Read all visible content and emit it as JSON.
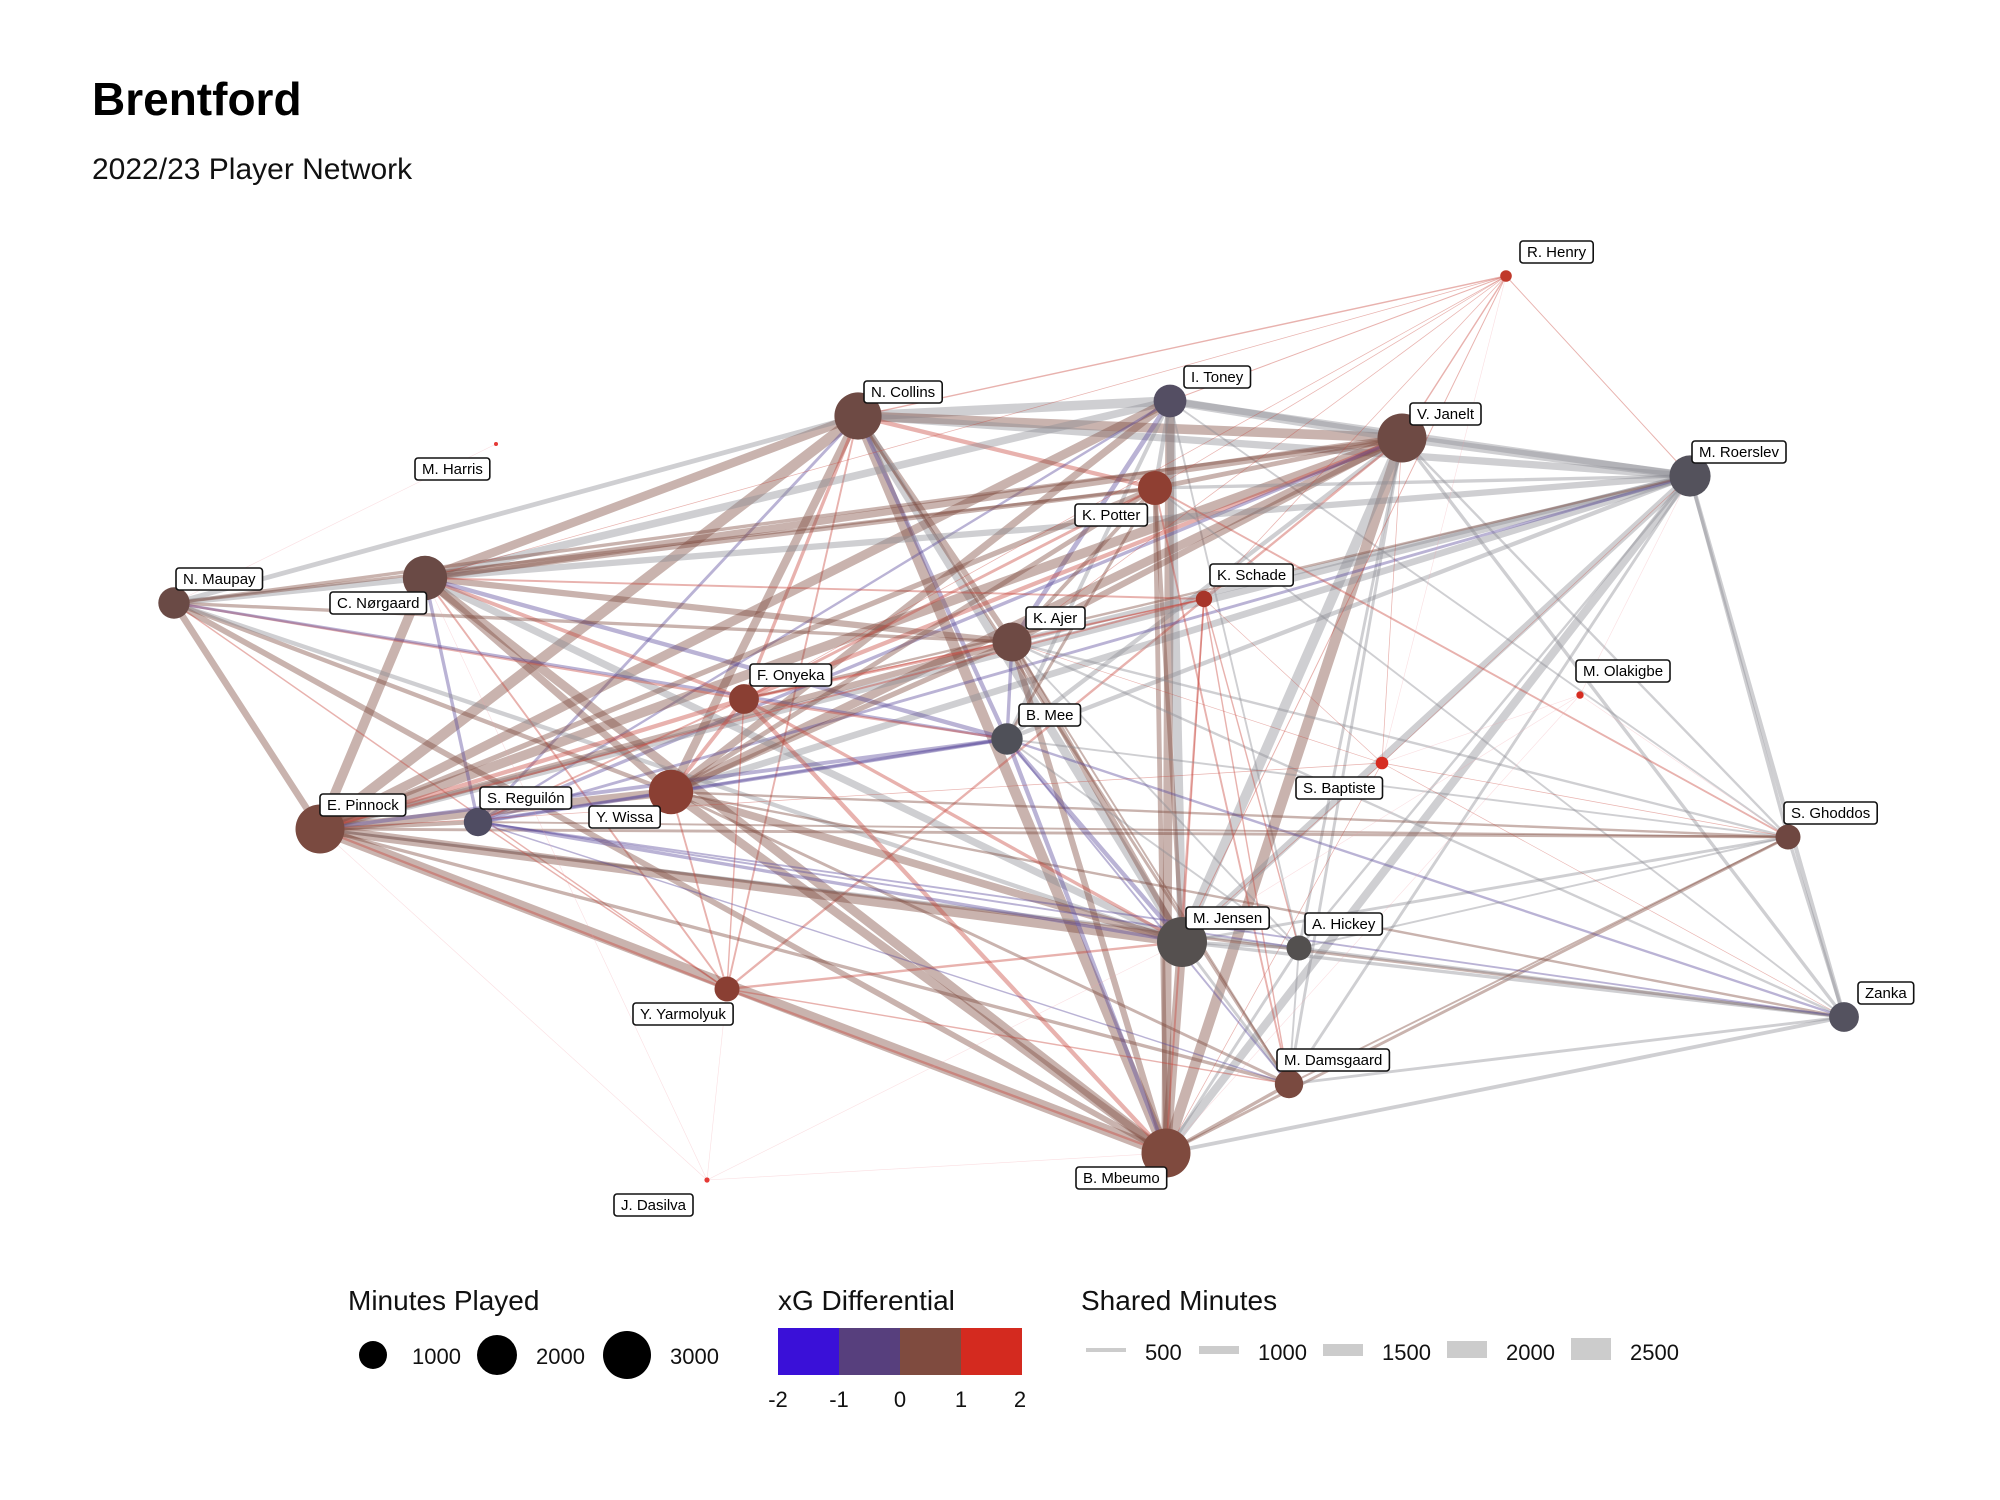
{
  "header": {
    "title": "Brentford",
    "subtitle": "2022/23 Player Network"
  },
  "legends": {
    "minutes_played": {
      "title": "Minutes Played",
      "entries": [
        "1000",
        "2000",
        "3000"
      ]
    },
    "xg_differential": {
      "title": "xG Differential",
      "ticks": [
        "-2",
        "-1",
        "0",
        "1",
        "2"
      ],
      "colors": [
        "#3a10d8",
        "#573f7d",
        "#7f4b3f",
        "#d42a1f"
      ]
    },
    "shared_minutes": {
      "title": "Shared Minutes",
      "entries": [
        "500",
        "1000",
        "1500",
        "2000",
        "2500"
      ]
    }
  },
  "colors": {
    "edge_red": "#c8473f",
    "edge_brown": "#7f4b3f",
    "edge_purple": "#5a4a9a",
    "edge_grey": "#8d8d94",
    "edge_pink": "#f0a0a8",
    "legend_grey": "#cccccc"
  },
  "nodes": [
    {
      "id": "henry",
      "name": "R. Henry",
      "minutes": 150,
      "xg": 2.0,
      "color": "#c0392b"
    },
    {
      "id": "toney",
      "name": "I. Toney",
      "minutes": 1200,
      "xg": -0.6,
      "color": "#544e63"
    },
    {
      "id": "collins",
      "name": "N. Collins",
      "minutes": 2500,
      "xg": 0.1,
      "color": "#6e4a44"
    },
    {
      "id": "janelt",
      "name": "V. Janelt",
      "minutes": 2700,
      "xg": 0.2,
      "color": "#6e4a44"
    },
    {
      "id": "roerslev",
      "name": "M. Roerslev",
      "minutes": 1900,
      "xg": -0.3,
      "color": "#54525c"
    },
    {
      "id": "harris",
      "name": "M. Harris",
      "minutes": 2,
      "xg": 2.0,
      "color": "#e53935"
    },
    {
      "id": "potter",
      "name": "K. Potter",
      "minutes": 1300,
      "xg": 0.9,
      "color": "#8f3f32"
    },
    {
      "id": "maupay",
      "name": "N. Maupay",
      "minutes": 1100,
      "xg": 0.1,
      "color": "#6a4a45"
    },
    {
      "id": "norgaard",
      "name": "C. Nørgaard",
      "minutes": 2200,
      "xg": 0.1,
      "color": "#6a4a45"
    },
    {
      "id": "schade",
      "name": "K. Schade",
      "minutes": 300,
      "xg": 1.2,
      "color": "#a7362a"
    },
    {
      "id": "ajer",
      "name": "K. Ajer",
      "minutes": 1700,
      "xg": 0.1,
      "color": "#6e4a44"
    },
    {
      "id": "olakigbe",
      "name": "M. Olakigbe",
      "minutes": 60,
      "xg": 2.0,
      "color": "#d62b20"
    },
    {
      "id": "onyeka",
      "name": "F. Onyeka",
      "minutes": 1000,
      "xg": 0.7,
      "color": "#8a3f33"
    },
    {
      "id": "mee",
      "name": "B. Mee",
      "minutes": 1100,
      "xg": -0.3,
      "color": "#4f5058"
    },
    {
      "id": "baptiste",
      "name": "S. Baptiste",
      "minutes": 180,
      "xg": 2.0,
      "color": "#d62b20"
    },
    {
      "id": "ghoddos",
      "name": "S. Ghoddos",
      "minutes": 700,
      "xg": 0.2,
      "color": "#6f4741"
    },
    {
      "id": "pinnock",
      "name": "E. Pinnock",
      "minutes": 2700,
      "xg": 0.3,
      "color": "#7a4a40"
    },
    {
      "id": "reguilon",
      "name": "S. Reguilón",
      "minutes": 900,
      "xg": -0.5,
      "color": "#4f4c62"
    },
    {
      "id": "wissa",
      "name": "Y. Wissa",
      "minutes": 2200,
      "xg": 0.7,
      "color": "#8a3f33"
    },
    {
      "id": "jensen",
      "name": "M. Jensen",
      "minutes": 2800,
      "xg": -0.1,
      "color": "#55504f"
    },
    {
      "id": "hickey",
      "name": "A. Hickey",
      "minutes": 700,
      "xg": -0.1,
      "color": "#53504f"
    },
    {
      "id": "yarmolyuk",
      "name": "Y. Yarmolyuk",
      "minutes": 700,
      "xg": 0.6,
      "color": "#8a3f33"
    },
    {
      "id": "zanka",
      "name": "Zanka",
      "minutes": 1000,
      "xg": -0.4,
      "color": "#54525f"
    },
    {
      "id": "damsgaard",
      "name": "M. Damsgaard",
      "minutes": 900,
      "xg": 0.3,
      "color": "#7a4a40"
    },
    {
      "id": "mbeumo",
      "name": "B. Mbeumo",
      "minutes": 2700,
      "xg": 0.4,
      "color": "#7f4a3e"
    },
    {
      "id": "dasilva",
      "name": "J. Dasilva",
      "minutes": 30,
      "xg": 2.0,
      "color": "#e53935"
    }
  ],
  "edges": [
    [
      "collins",
      "toney",
      2000,
      "g"
    ],
    [
      "collins",
      "janelt",
      2000,
      "b"
    ],
    [
      "collins",
      "roerslev",
      1500,
      "g"
    ],
    [
      "collins",
      "norgaard",
      1800,
      "b"
    ],
    [
      "collins",
      "maupay",
      1000,
      "g"
    ],
    [
      "collins",
      "pinnock",
      2200,
      "b"
    ],
    [
      "collins",
      "ajer",
      1200,
      "b"
    ],
    [
      "collins",
      "mbeumo",
      2200,
      "b"
    ],
    [
      "collins",
      "jensen",
      1800,
      "g"
    ],
    [
      "collins",
      "wissa",
      1700,
      "b"
    ],
    [
      "collins",
      "onyeka",
      700,
      "r"
    ],
    [
      "collins",
      "potter",
      900,
      "r"
    ],
    [
      "collins",
      "mee",
      900,
      "p"
    ],
    [
      "collins",
      "henry",
      300,
      "r"
    ],
    [
      "collins",
      "damsgaard",
      600,
      "b"
    ],
    [
      "collins",
      "reguilon",
      600,
      "p"
    ],
    [
      "collins",
      "yarmolyuk",
      400,
      "r"
    ],
    [
      "toney",
      "janelt",
      1800,
      "g"
    ],
    [
      "toney",
      "roerslev",
      1400,
      "g"
    ],
    [
      "toney",
      "norgaard",
      1600,
      "g"
    ],
    [
      "toney",
      "pinnock",
      1900,
      "b"
    ],
    [
      "toney",
      "mbeumo",
      1900,
      "b"
    ],
    [
      "toney",
      "jensen",
      1900,
      "g"
    ],
    [
      "toney",
      "wissa",
      1500,
      "b"
    ],
    [
      "toney",
      "ajer",
      1000,
      "p"
    ],
    [
      "toney",
      "potter",
      900,
      "g"
    ],
    [
      "toney",
      "mee",
      800,
      "g"
    ],
    [
      "toney",
      "henry",
      200,
      "r"
    ],
    [
      "toney",
      "ghoddos",
      400,
      "g"
    ],
    [
      "toney",
      "hickey",
      400,
      "g"
    ],
    [
      "toney",
      "reguilon",
      500,
      "p"
    ],
    [
      "janelt",
      "roerslev",
      1700,
      "g"
    ],
    [
      "janelt",
      "norgaard",
      1500,
      "b"
    ],
    [
      "janelt",
      "pinnock",
      2000,
      "b"
    ],
    [
      "janelt",
      "mbeumo",
      2200,
      "b"
    ],
    [
      "janelt",
      "jensen",
      2100,
      "g"
    ],
    [
      "janelt",
      "wissa",
      1800,
      "b"
    ],
    [
      "janelt",
      "ajer",
      1300,
      "b"
    ],
    [
      "janelt",
      "onyeka",
      900,
      "r"
    ],
    [
      "janelt",
      "potter",
      1000,
      "b"
    ],
    [
      "janelt",
      "mee",
      900,
      "g"
    ],
    [
      "janelt",
      "zanka",
      700,
      "g"
    ],
    [
      "janelt",
      "ghoddos",
      500,
      "g"
    ],
    [
      "janelt",
      "henry",
      300,
      "r"
    ],
    [
      "janelt",
      "damsgaard",
      600,
      "g"
    ],
    [
      "janelt",
      "hickey",
      600,
      "g"
    ],
    [
      "janelt",
      "reguilon",
      700,
      "p"
    ],
    [
      "janelt",
      "maupay",
      700,
      "b"
    ],
    [
      "janelt",
      "yarmolyuk",
      500,
      "r"
    ],
    [
      "roerslev",
      "pinnock",
      1500,
      "g"
    ],
    [
      "roerslev",
      "mbeumo",
      1700,
      "g"
    ],
    [
      "roerslev",
      "jensen",
      1500,
      "g"
    ],
    [
      "roerslev",
      "norgaard",
      1300,
      "g"
    ],
    [
      "roerslev",
      "wissa",
      1400,
      "g"
    ],
    [
      "roerslev",
      "ajer",
      1100,
      "g"
    ],
    [
      "roerslev",
      "zanka",
      900,
      "g"
    ],
    [
      "roerslev",
      "ghoddos",
      700,
      "g"
    ],
    [
      "roerslev",
      "mee",
      900,
      "g"
    ],
    [
      "roerslev",
      "hickey",
      500,
      "g"
    ],
    [
      "roerslev",
      "damsgaard",
      600,
      "g"
    ],
    [
      "roerslev",
      "henry",
      200,
      "r"
    ],
    [
      "roerslev",
      "reguilon",
      600,
      "p"
    ],
    [
      "roerslev",
      "onyeka",
      500,
      "b"
    ],
    [
      "roerslev",
      "potter",
      700,
      "g"
    ],
    [
      "norgaard",
      "maupay",
      1200,
      "g"
    ],
    [
      "norgaard",
      "pinnock",
      2000,
      "b"
    ],
    [
      "norgaard",
      "mbeumo",
      1900,
      "b"
    ],
    [
      "norgaard",
      "jensen",
      1500,
      "g"
    ],
    [
      "norgaard",
      "wissa",
      1500,
      "b"
    ],
    [
      "norgaard",
      "ajer",
      1300,
      "b"
    ],
    [
      "norgaard",
      "onyeka",
      800,
      "r"
    ],
    [
      "norgaard",
      "potter",
      900,
      "b"
    ],
    [
      "norgaard",
      "mee",
      900,
      "p"
    ],
    [
      "norgaard",
      "reguilon",
      700,
      "p"
    ],
    [
      "norgaard",
      "yarmolyuk",
      400,
      "r"
    ],
    [
      "norgaard",
      "schade",
      400,
      "r"
    ],
    [
      "maupay",
      "pinnock",
      1400,
      "b"
    ],
    [
      "maupay",
      "mbeumo",
      1200,
      "b"
    ],
    [
      "maupay",
      "wissa",
      900,
      "b"
    ],
    [
      "maupay",
      "jensen",
      900,
      "g"
    ],
    [
      "maupay",
      "ajer",
      700,
      "b"
    ],
    [
      "maupay",
      "onyeka",
      500,
      "r"
    ],
    [
      "maupay",
      "potter",
      600,
      "b"
    ],
    [
      "maupay",
      "mee",
      600,
      "p"
    ],
    [
      "maupay",
      "yarmolyuk",
      300,
      "r"
    ],
    [
      "maupay",
      "harris",
      20,
      "k"
    ],
    [
      "pinnock",
      "mbeumo",
      2300,
      "b"
    ],
    [
      "pinnock",
      "jensen",
      2000,
      "b"
    ],
    [
      "pinnock",
      "wissa",
      1800,
      "b"
    ],
    [
      "pinnock",
      "ajer",
      1300,
      "b"
    ],
    [
      "pinnock",
      "onyeka",
      900,
      "r"
    ],
    [
      "pinnock",
      "potter",
      1100,
      "b"
    ],
    [
      "pinnock",
      "mee",
      800,
      "p"
    ],
    [
      "pinnock",
      "reguilon",
      900,
      "b"
    ],
    [
      "pinnock",
      "yarmolyuk",
      500,
      "r"
    ],
    [
      "pinnock",
      "ghoddos",
      600,
      "b"
    ],
    [
      "pinnock",
      "hickey",
      600,
      "g"
    ],
    [
      "pinnock",
      "damsgaard",
      700,
      "b"
    ],
    [
      "pinnock",
      "zanka",
      600,
      "b"
    ],
    [
      "pinnock",
      "schade",
      400,
      "r"
    ],
    [
      "pinnock",
      "dasilva",
      20,
      "k"
    ],
    [
      "wissa",
      "mbeumo",
      1800,
      "b"
    ],
    [
      "wissa",
      "jensen",
      1600,
      "b"
    ],
    [
      "wissa",
      "ajer",
      1100,
      "b"
    ],
    [
      "wissa",
      "onyeka",
      800,
      "r"
    ],
    [
      "wissa",
      "potter",
      1000,
      "b"
    ],
    [
      "wissa",
      "mee",
      800,
      "p"
    ],
    [
      "wissa",
      "reguilon",
      800,
      "p"
    ],
    [
      "wissa",
      "yarmolyuk",
      400,
      "r"
    ],
    [
      "wissa",
      "damsgaard",
      600,
      "b"
    ],
    [
      "wissa",
      "zanka",
      500,
      "b"
    ],
    [
      "wissa",
      "ghoddos",
      500,
      "b"
    ],
    [
      "mbeumo",
      "jensen",
      2000,
      "b"
    ],
    [
      "mbeumo",
      "ajer",
      1300,
      "b"
    ],
    [
      "mbeumo",
      "onyeka",
      900,
      "r"
    ],
    [
      "mbeumo",
      "potter",
      1000,
      "b"
    ],
    [
      "mbeumo",
      "mee",
      900,
      "p"
    ],
    [
      "mbeumo",
      "damsgaard",
      700,
      "b"
    ],
    [
      "mbeumo",
      "hickey",
      600,
      "g"
    ],
    [
      "mbeumo",
      "zanka",
      800,
      "g"
    ],
    [
      "mbeumo",
      "ghoddos",
      600,
      "b"
    ],
    [
      "mbeumo",
      "yarmolyuk",
      500,
      "r"
    ],
    [
      "mbeumo",
      "schade",
      400,
      "r"
    ],
    [
      "mbeumo",
      "baptiste",
      150,
      "r"
    ],
    [
      "mbeumo",
      "dasilva",
      20,
      "k"
    ],
    [
      "jensen",
      "ajer",
      1200,
      "b"
    ],
    [
      "jensen",
      "onyeka",
      700,
      "r"
    ],
    [
      "jensen",
      "potter",
      900,
      "b"
    ],
    [
      "jensen",
      "mee",
      900,
      "p"
    ],
    [
      "jensen",
      "hickey",
      700,
      "g"
    ],
    [
      "jensen",
      "damsgaard",
      600,
      "g"
    ],
    [
      "jensen",
      "zanka",
      700,
      "g"
    ],
    [
      "jensen",
      "ghoddos",
      600,
      "g"
    ],
    [
      "jensen",
      "reguilon",
      700,
      "p"
    ],
    [
      "jensen",
      "yarmolyuk",
      500,
      "r"
    ],
    [
      "jensen",
      "schade",
      300,
      "r"
    ],
    [
      "jensen",
      "henry",
      200,
      "r"
    ],
    [
      "ajer",
      "onyeka",
      600,
      "r"
    ],
    [
      "ajer",
      "potter",
      800,
      "b"
    ],
    [
      "ajer",
      "mee",
      700,
      "p"
    ],
    [
      "ajer",
      "zanka",
      500,
      "g"
    ],
    [
      "ajer",
      "ghoddos",
      500,
      "g"
    ],
    [
      "ajer",
      "hickey",
      400,
      "g"
    ],
    [
      "ajer",
      "damsgaard",
      400,
      "b"
    ],
    [
      "ajer",
      "schade",
      300,
      "r"
    ],
    [
      "onyeka",
      "potter",
      600,
      "r"
    ],
    [
      "onyeka",
      "mee",
      500,
      "r"
    ],
    [
      "onyeka",
      "yarmolyuk",
      300,
      "r"
    ],
    [
      "onyeka",
      "reguilon",
      400,
      "r"
    ],
    [
      "onyeka",
      "schade",
      300,
      "r"
    ],
    [
      "onyeka",
      "henry",
      150,
      "r"
    ],
    [
      "potter",
      "mee",
      600,
      "b"
    ],
    [
      "potter",
      "damsgaard",
      400,
      "r"
    ],
    [
      "potter",
      "ghoddos",
      400,
      "r"
    ],
    [
      "potter",
      "zanka",
      400,
      "g"
    ],
    [
      "potter",
      "henry",
      150,
      "r"
    ],
    [
      "mee",
      "zanka",
      500,
      "p"
    ],
    [
      "mee",
      "reguilon",
      500,
      "p"
    ],
    [
      "mee",
      "hickey",
      400,
      "g"
    ],
    [
      "mee",
      "ghoddos",
      400,
      "g"
    ],
    [
      "mee",
      "damsgaard",
      400,
      "p"
    ],
    [
      "zanka",
      "ghoddos",
      700,
      "g"
    ],
    [
      "zanka",
      "hickey",
      600,
      "g"
    ],
    [
      "zanka",
      "damsgaard",
      600,
      "g"
    ],
    [
      "zanka",
      "reguilon",
      400,
      "p"
    ],
    [
      "ghoddos",
      "hickey",
      400,
      "g"
    ],
    [
      "ghoddos",
      "damsgaard",
      400,
      "b"
    ],
    [
      "ghoddos",
      "reguilon",
      400,
      "b"
    ],
    [
      "ghoddos",
      "olakigbe",
      40,
      "k"
    ],
    [
      "ghoddos",
      "baptiste",
      150,
      "r"
    ],
    [
      "damsgaard",
      "hickey",
      400,
      "g"
    ],
    [
      "damsgaard",
      "yarmolyuk",
      300,
      "r"
    ],
    [
      "schade",
      "hickey",
      300,
      "r"
    ],
    [
      "schade",
      "damsgaard",
      300,
      "r"
    ],
    [
      "schade",
      "baptiste",
      100,
      "r"
    ],
    [
      "henry",
      "schade",
      150,
      "r"
    ],
    [
      "henry",
      "ajer",
      150,
      "r"
    ],
    [
      "henry",
      "norgaard",
      150,
      "r"
    ],
    [
      "henry",
      "baptiste",
      40,
      "k"
    ],
    [
      "baptiste",
      "jensen",
      150,
      "r"
    ],
    [
      "baptiste",
      "janelt",
      150,
      "r"
    ],
    [
      "baptiste",
      "roerslev",
      120,
      "r"
    ],
    [
      "baptiste",
      "pinnock",
      150,
      "r"
    ],
    [
      "baptiste",
      "zanka",
      100,
      "r"
    ],
    [
      "baptiste",
      "ajer",
      120,
      "r"
    ],
    [
      "baptiste",
      "olakigbe",
      30,
      "k"
    ],
    [
      "olakigbe",
      "roerslev",
      40,
      "k"
    ],
    [
      "olakigbe",
      "jensen",
      40,
      "k"
    ],
    [
      "olakigbe",
      "mbeumo",
      40,
      "k"
    ],
    [
      "reguilon",
      "yarmolyuk",
      300,
      "r"
    ],
    [
      "reguilon",
      "hickey",
      400,
      "p"
    ],
    [
      "reguilon",
      "damsgaard",
      300,
      "p"
    ],
    [
      "dasilva",
      "yarmolyuk",
      20,
      "k"
    ],
    [
      "dasilva",
      "norgaard",
      20,
      "k"
    ],
    [
      "dasilva",
      "jensen",
      20,
      "k"
    ]
  ]
}
